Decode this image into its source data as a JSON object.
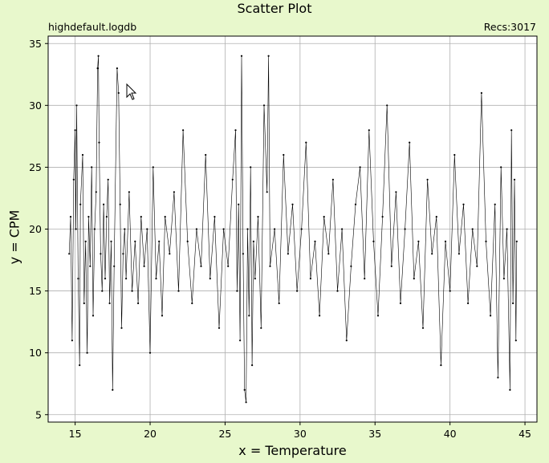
{
  "window": {
    "title": "Scatter Plot",
    "file_label": "highdefault.logdb",
    "records_label": "Recs:3017"
  },
  "colors": {
    "background": "#e8f8cc",
    "plot_area": "#ffffff",
    "data": "#000000",
    "grid": "#b0b0b0"
  },
  "chart_data": {
    "type": "scatter",
    "title": "Scatter Plot",
    "xlabel": "x = Temperature",
    "ylabel": "y = CPM",
    "xlim": [
      13.2,
      45.8
    ],
    "ylim": [
      4.4,
      35.6
    ],
    "xticks": [
      15,
      20,
      25,
      30,
      35,
      40,
      45
    ],
    "yticks": [
      5,
      10,
      15,
      20,
      25,
      30,
      35
    ],
    "grid": true,
    "markers_connected": true,
    "n_points": 3017,
    "series": [
      {
        "points": [
          [
            14.6,
            18
          ],
          [
            14.7,
            21
          ],
          [
            14.8,
            11
          ],
          [
            14.9,
            24
          ],
          [
            15.0,
            28
          ],
          [
            15.05,
            20
          ],
          [
            15.1,
            30
          ],
          [
            15.2,
            16
          ],
          [
            15.3,
            9
          ],
          [
            15.35,
            22
          ],
          [
            15.5,
            26
          ],
          [
            15.6,
            14
          ],
          [
            15.7,
            19
          ],
          [
            15.8,
            10
          ],
          [
            15.9,
            21
          ],
          [
            16.0,
            17
          ],
          [
            16.1,
            25
          ],
          [
            16.2,
            13
          ],
          [
            16.3,
            20
          ],
          [
            16.4,
            23
          ],
          [
            16.5,
            33
          ],
          [
            16.55,
            34
          ],
          [
            16.6,
            27
          ],
          [
            16.7,
            18
          ],
          [
            16.8,
            15
          ],
          [
            16.9,
            22
          ],
          [
            17.0,
            16
          ],
          [
            17.1,
            21
          ],
          [
            17.2,
            24
          ],
          [
            17.3,
            14
          ],
          [
            17.4,
            19
          ],
          [
            17.5,
            7
          ],
          [
            17.6,
            17
          ],
          [
            17.8,
            33
          ],
          [
            17.9,
            31
          ],
          [
            18.0,
            22
          ],
          [
            18.1,
            12
          ],
          [
            18.2,
            18
          ],
          [
            18.3,
            20
          ],
          [
            18.4,
            16
          ],
          [
            18.6,
            23
          ],
          [
            18.8,
            15
          ],
          [
            19.0,
            19
          ],
          [
            19.2,
            14
          ],
          [
            19.4,
            21
          ],
          [
            19.6,
            17
          ],
          [
            19.8,
            20
          ],
          [
            20.0,
            10
          ],
          [
            20.2,
            25
          ],
          [
            20.4,
            16
          ],
          [
            20.6,
            19
          ],
          [
            20.8,
            13
          ],
          [
            21.0,
            21
          ],
          [
            21.3,
            18
          ],
          [
            21.6,
            23
          ],
          [
            21.9,
            15
          ],
          [
            22.2,
            28
          ],
          [
            22.5,
            19
          ],
          [
            22.8,
            14
          ],
          [
            23.1,
            20
          ],
          [
            23.4,
            17
          ],
          [
            23.7,
            26
          ],
          [
            24.0,
            16
          ],
          [
            24.3,
            21
          ],
          [
            24.6,
            12
          ],
          [
            24.9,
            20
          ],
          [
            25.2,
            17
          ],
          [
            25.5,
            24
          ],
          [
            25.7,
            28
          ],
          [
            25.8,
            15
          ],
          [
            25.9,
            22
          ],
          [
            26.0,
            11
          ],
          [
            26.1,
            34
          ],
          [
            26.2,
            18
          ],
          [
            26.3,
            7
          ],
          [
            26.4,
            6
          ],
          [
            26.5,
            20
          ],
          [
            26.6,
            13
          ],
          [
            26.7,
            25
          ],
          [
            26.8,
            9
          ],
          [
            26.9,
            19
          ],
          [
            27.0,
            16
          ],
          [
            27.2,
            21
          ],
          [
            27.4,
            12
          ],
          [
            27.6,
            30
          ],
          [
            27.8,
            23
          ],
          [
            27.9,
            34
          ],
          [
            28.0,
            17
          ],
          [
            28.3,
            20
          ],
          [
            28.6,
            14
          ],
          [
            28.9,
            26
          ],
          [
            29.2,
            18
          ],
          [
            29.5,
            22
          ],
          [
            29.8,
            15
          ],
          [
            30.1,
            20
          ],
          [
            30.4,
            27
          ],
          [
            30.7,
            16
          ],
          [
            31.0,
            19
          ],
          [
            31.3,
            13
          ],
          [
            31.6,
            21
          ],
          [
            31.9,
            18
          ],
          [
            32.2,
            24
          ],
          [
            32.5,
            15
          ],
          [
            32.8,
            20
          ],
          [
            33.1,
            11
          ],
          [
            33.4,
            17
          ],
          [
            33.7,
            22
          ],
          [
            34.0,
            25
          ],
          [
            34.3,
            16
          ],
          [
            34.6,
            28
          ],
          [
            34.9,
            19
          ],
          [
            35.2,
            13
          ],
          [
            35.5,
            21
          ],
          [
            35.8,
            30
          ],
          [
            36.1,
            17
          ],
          [
            36.4,
            23
          ],
          [
            36.7,
            14
          ],
          [
            37.0,
            20
          ],
          [
            37.3,
            27
          ],
          [
            37.6,
            16
          ],
          [
            37.9,
            19
          ],
          [
            38.2,
            12
          ],
          [
            38.5,
            24
          ],
          [
            38.8,
            18
          ],
          [
            39.1,
            21
          ],
          [
            39.4,
            9
          ],
          [
            39.7,
            19
          ],
          [
            40.0,
            15
          ],
          [
            40.3,
            26
          ],
          [
            40.6,
            18
          ],
          [
            40.9,
            22
          ],
          [
            41.2,
            14
          ],
          [
            41.5,
            20
          ],
          [
            41.8,
            17
          ],
          [
            42.1,
            31
          ],
          [
            42.4,
            19
          ],
          [
            42.7,
            13
          ],
          [
            43.0,
            22
          ],
          [
            43.2,
            8
          ],
          [
            43.4,
            25
          ],
          [
            43.6,
            16
          ],
          [
            43.8,
            20
          ],
          [
            44.0,
            7
          ],
          [
            44.1,
            28
          ],
          [
            44.2,
            14
          ],
          [
            44.3,
            24
          ],
          [
            44.4,
            11
          ],
          [
            44.45,
            19
          ]
        ]
      }
    ]
  }
}
